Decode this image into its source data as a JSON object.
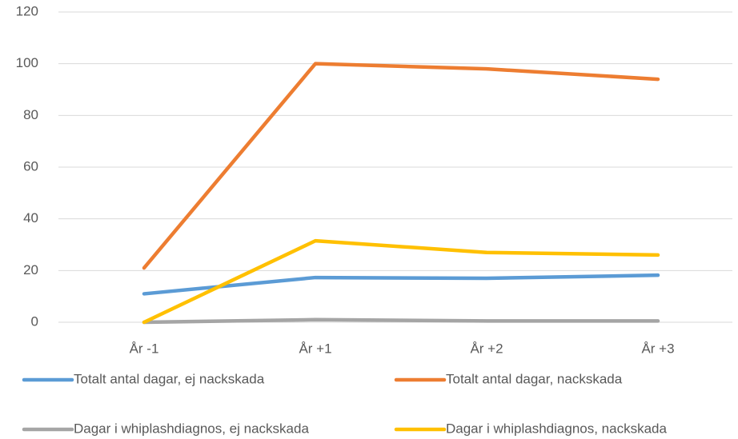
{
  "chart_data": {
    "type": "line",
    "categories": [
      "År -1",
      "År +1",
      "År +2",
      "År +3"
    ],
    "series": [
      {
        "name": "Totalt antal dagar, ej nackskada",
        "color": "#5b9bd5",
        "values": [
          11,
          17.3,
          17,
          18.2
        ]
      },
      {
        "name": "Totalt antal dagar, nackskada",
        "color": "#ed7d31",
        "values": [
          21,
          100,
          98,
          94
        ]
      },
      {
        "name": "Dagar i whiplashdiagnos, ej nackskada",
        "color": "#a5a5a5",
        "values": [
          0,
          1,
          0.5,
          0.5
        ]
      },
      {
        "name": "Dagar i whiplashdiagnos, nackskada",
        "color": "#ffc000",
        "values": [
          0,
          31.5,
          27,
          26
        ]
      }
    ],
    "ylim": [
      0,
      120
    ],
    "yticks": [
      0,
      20,
      40,
      60,
      80,
      100,
      120
    ],
    "grid": true,
    "legend": "bottom"
  }
}
